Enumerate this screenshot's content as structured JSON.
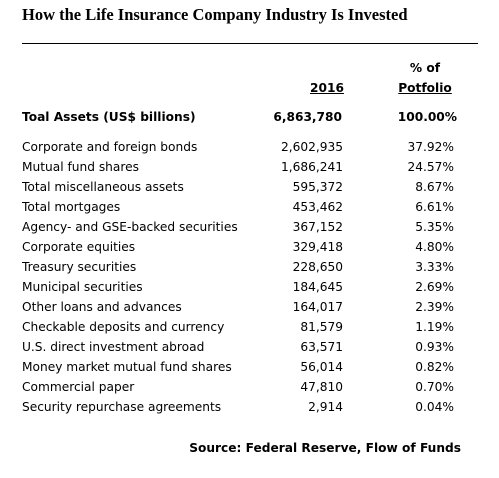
{
  "title": "How the Life Insurance Company Industry Is Invested",
  "headers": {
    "year": "2016",
    "pct_line1": "% of",
    "pct_line2": "Potfolio"
  },
  "total": {
    "label": "Toal Assets  (US$ billions)",
    "value": "6,863,780",
    "pct": "100.00%"
  },
  "rows": [
    {
      "label": "Corporate and foreign bonds",
      "value": "2,602,935",
      "pct": "37.92%"
    },
    {
      "label": "Mutual fund shares",
      "value": "1,686,241",
      "pct": "24.57%"
    },
    {
      "label": "Total miscellaneous assets",
      "value": "595,372",
      "pct": "8.67%"
    },
    {
      "label": "Total mortgages",
      "value": "453,462",
      "pct": "6.61%"
    },
    {
      "label": "Agency- and GSE-backed securities",
      "value": "367,152",
      "pct": "5.35%"
    },
    {
      "label": "Corporate equities",
      "value": "329,418",
      "pct": "4.80%"
    },
    {
      "label": "Treasury securities",
      "value": "228,650",
      "pct": "3.33%"
    },
    {
      "label": "Municipal securities",
      "value": "184,645",
      "pct": "2.69%"
    },
    {
      "label": "Other loans and advances",
      "value": "164,017",
      "pct": "2.39%"
    },
    {
      "label": "Checkable deposits and currency",
      "value": "81,579",
      "pct": "1.19%"
    },
    {
      "label": "U.S. direct investment abroad",
      "value": "63,571",
      "pct": "0.93%"
    },
    {
      "label": "Money market mutual fund shares",
      "value": "56,014",
      "pct": "0.82%"
    },
    {
      "label": "Commercial paper",
      "value": "47,810",
      "pct": "0.70%"
    },
    {
      "label": "Security repurchase agreements",
      "value": "2,914",
      "pct": "0.04%"
    }
  ],
  "source": "Source: Federal Reserve,  Flow of Funds"
}
